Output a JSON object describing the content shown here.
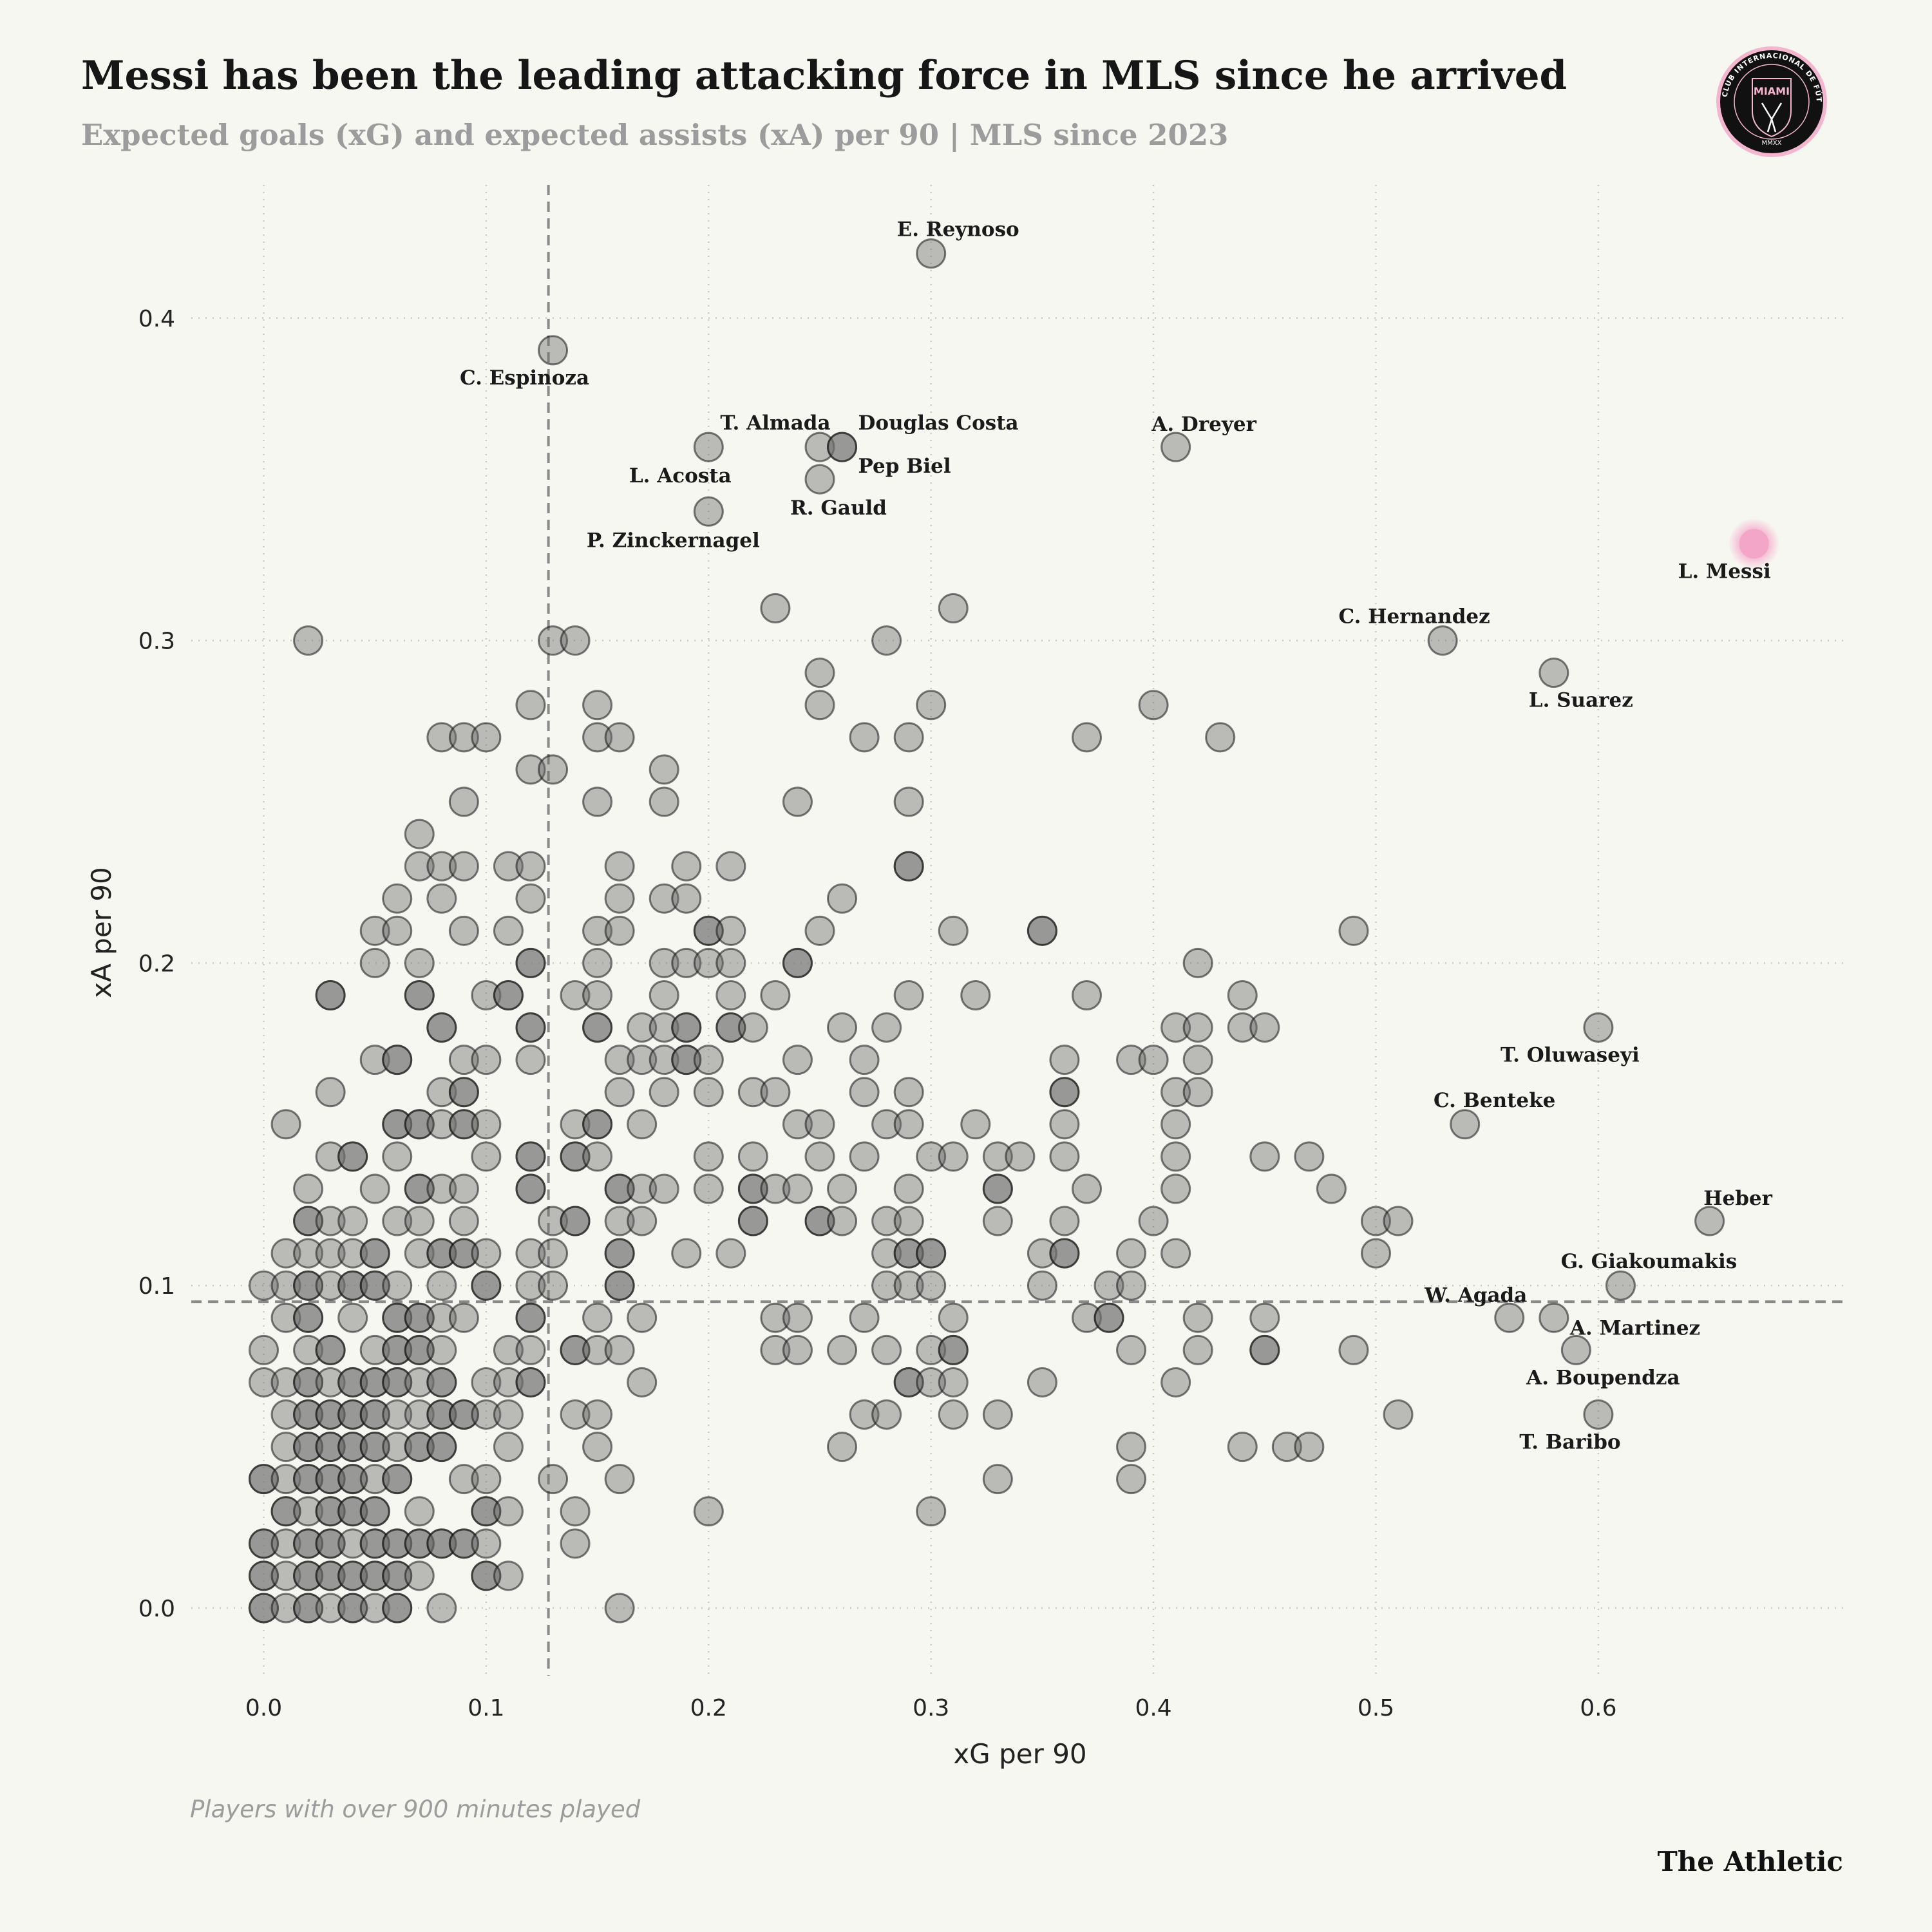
{
  "header": {
    "title": "Messi has been the leading attacking force in MLS since he arrived",
    "subtitle": "Expected goals (xG) and expected assists (xA) per 90 | MLS since 2023",
    "logo": {
      "icon": "inter-miami-crest",
      "text_top": "CLUB INTERNACIONAL DE FÚTBOL",
      "text_center": "MIAMI",
      "text_bottom": "MMXX",
      "colors": {
        "ring": "#f4b6cf",
        "body": "#111111"
      }
    }
  },
  "footer": {
    "note": "Players with over 900 minutes played",
    "brand": "The Athletic"
  },
  "chart_data": {
    "type": "scatter",
    "title": "Messi has been the leading attacking force in MLS since he arrived",
    "subtitle": "Expected goals (xG) and expected assists (xA) per 90 | MLS since 2023",
    "xlabel": "xG per 90",
    "ylabel": "xA per 90",
    "xlim": [
      -0.03,
      0.71
    ],
    "ylim": [
      -0.02,
      0.44
    ],
    "xticks": [
      "0.0",
      "0.1",
      "0.2",
      "0.3",
      "0.4",
      "0.5",
      "0.6"
    ],
    "yticks": [
      "0.0",
      "0.1",
      "0.2",
      "0.3",
      "0.4"
    ],
    "grid": true,
    "reference_lines": {
      "x": 0.128,
      "y": 0.095
    },
    "colors": {
      "point": "#8a8a8a",
      "highlight": "#f4a6c8",
      "background": "#f7f7f2"
    },
    "rows": [
      {
        "y": 0.42,
        "x": [
          0.3
        ]
      },
      {
        "y": 0.39,
        "x": [
          0.13
        ]
      },
      {
        "y": 0.36,
        "x": [
          0.2,
          0.25,
          0.26,
          0.26,
          0.41
        ]
      },
      {
        "y": 0.35,
        "x": [
          0.25
        ]
      },
      {
        "y": 0.34,
        "x": [
          0.2
        ]
      },
      {
        "y": 0.31,
        "x": [
          0.23,
          0.31
        ]
      },
      {
        "y": 0.3,
        "x": [
          0.02,
          0.13,
          0.14,
          0.28,
          0.53
        ]
      },
      {
        "y": 0.29,
        "x": [
          0.25,
          0.58
        ]
      },
      {
        "y": 0.28,
        "x": [
          0.12,
          0.15,
          0.25,
          0.3,
          0.4
        ]
      },
      {
        "y": 0.27,
        "x": [
          0.08,
          0.09,
          0.1,
          0.15,
          0.16,
          0.27,
          0.29,
          0.37,
          0.43
        ]
      },
      {
        "y": 0.26,
        "x": [
          0.12,
          0.13,
          0.18
        ]
      },
      {
        "y": 0.25,
        "x": [
          0.09,
          0.15,
          0.18,
          0.24,
          0.29
        ]
      },
      {
        "y": 0.24,
        "x": [
          0.07
        ]
      },
      {
        "y": 0.23,
        "x": [
          0.07,
          0.08,
          0.09,
          0.11,
          0.12,
          0.16,
          0.19,
          0.21,
          0.29,
          0.29
        ]
      },
      {
        "y": 0.22,
        "x": [
          0.06,
          0.08,
          0.12,
          0.16,
          0.18,
          0.19,
          0.26
        ]
      },
      {
        "y": 0.21,
        "x": [
          0.05,
          0.06,
          0.09,
          0.11,
          0.15,
          0.16,
          0.2,
          0.2,
          0.21,
          0.25,
          0.31,
          0.35,
          0.35,
          0.49
        ]
      },
      {
        "y": 0.2,
        "x": [
          0.05,
          0.07,
          0.12,
          0.12,
          0.15,
          0.18,
          0.19,
          0.2,
          0.21,
          0.24,
          0.24,
          0.42
        ]
      },
      {
        "y": 0.19,
        "x": [
          0.03,
          0.03,
          0.07,
          0.07,
          0.1,
          0.11,
          0.11,
          0.14,
          0.15,
          0.18,
          0.21,
          0.23,
          0.29,
          0.32,
          0.37,
          0.44
        ]
      },
      {
        "y": 0.18,
        "x": [
          0.08,
          0.08,
          0.12,
          0.12,
          0.15,
          0.15,
          0.17,
          0.18,
          0.19,
          0.19,
          0.21,
          0.21,
          0.22,
          0.26,
          0.28,
          0.41,
          0.42,
          0.44,
          0.45,
          0.6
        ]
      },
      {
        "y": 0.17,
        "x": [
          0.05,
          0.06,
          0.06,
          0.09,
          0.1,
          0.12,
          0.16,
          0.17,
          0.18,
          0.19,
          0.19,
          0.2,
          0.24,
          0.27,
          0.36,
          0.39,
          0.4,
          0.42
        ]
      },
      {
        "y": 0.16,
        "x": [
          0.03,
          0.08,
          0.09,
          0.09,
          0.16,
          0.18,
          0.2,
          0.22,
          0.23,
          0.27,
          0.29,
          0.36,
          0.36,
          0.41,
          0.42
        ]
      },
      {
        "y": 0.15,
        "x": [
          0.01,
          0.06,
          0.06,
          0.07,
          0.07,
          0.08,
          0.09,
          0.09,
          0.1,
          0.14,
          0.15,
          0.15,
          0.17,
          0.24,
          0.25,
          0.28,
          0.29,
          0.32,
          0.36,
          0.41,
          0.54
        ]
      },
      {
        "y": 0.14,
        "x": [
          0.03,
          0.04,
          0.04,
          0.06,
          0.1,
          0.12,
          0.12,
          0.14,
          0.14,
          0.15,
          0.2,
          0.22,
          0.25,
          0.27,
          0.3,
          0.31,
          0.33,
          0.34,
          0.36,
          0.41,
          0.45,
          0.47
        ]
      },
      {
        "y": 0.13,
        "x": [
          0.02,
          0.05,
          0.07,
          0.07,
          0.08,
          0.09,
          0.12,
          0.12,
          0.16,
          0.16,
          0.17,
          0.18,
          0.2,
          0.22,
          0.22,
          0.23,
          0.24,
          0.26,
          0.29,
          0.33,
          0.33,
          0.37,
          0.41,
          0.48
        ]
      },
      {
        "y": 0.12,
        "x": [
          0.02,
          0.02,
          0.03,
          0.04,
          0.06,
          0.07,
          0.09,
          0.13,
          0.14,
          0.14,
          0.16,
          0.17,
          0.22,
          0.22,
          0.25,
          0.25,
          0.26,
          0.28,
          0.29,
          0.33,
          0.36,
          0.4,
          0.5,
          0.51,
          0.65
        ]
      },
      {
        "y": 0.11,
        "x": [
          0.01,
          0.02,
          0.03,
          0.04,
          0.05,
          0.05,
          0.07,
          0.08,
          0.08,
          0.09,
          0.09,
          0.1,
          0.12,
          0.13,
          0.16,
          0.16,
          0.19,
          0.21,
          0.28,
          0.29,
          0.29,
          0.3,
          0.3,
          0.35,
          0.36,
          0.36,
          0.39,
          0.41,
          0.5
        ]
      },
      {
        "y": 0.1,
        "x": [
          0.0,
          0.01,
          0.02,
          0.02,
          0.03,
          0.04,
          0.04,
          0.05,
          0.05,
          0.06,
          0.08,
          0.1,
          0.1,
          0.12,
          0.13,
          0.16,
          0.16,
          0.28,
          0.29,
          0.3,
          0.35,
          0.38,
          0.39,
          0.61
        ]
      },
      {
        "y": 0.09,
        "x": [
          0.01,
          0.02,
          0.02,
          0.04,
          0.06,
          0.06,
          0.07,
          0.07,
          0.08,
          0.09,
          0.12,
          0.12,
          0.15,
          0.17,
          0.23,
          0.24,
          0.27,
          0.31,
          0.37,
          0.38,
          0.38,
          0.42,
          0.45,
          0.56,
          0.58
        ]
      },
      {
        "y": 0.08,
        "x": [
          0.0,
          0.02,
          0.03,
          0.03,
          0.05,
          0.06,
          0.06,
          0.07,
          0.07,
          0.08,
          0.11,
          0.12,
          0.14,
          0.14,
          0.15,
          0.16,
          0.23,
          0.24,
          0.26,
          0.28,
          0.3,
          0.31,
          0.31,
          0.39,
          0.42,
          0.45,
          0.45,
          0.49,
          0.59
        ]
      },
      {
        "y": 0.07,
        "x": [
          0.0,
          0.01,
          0.02,
          0.02,
          0.03,
          0.04,
          0.04,
          0.05,
          0.05,
          0.06,
          0.06,
          0.07,
          0.08,
          0.08,
          0.1,
          0.11,
          0.12,
          0.12,
          0.17,
          0.29,
          0.29,
          0.3,
          0.31,
          0.35,
          0.41
        ]
      },
      {
        "y": 0.06,
        "x": [
          0.01,
          0.02,
          0.02,
          0.03,
          0.03,
          0.04,
          0.04,
          0.05,
          0.05,
          0.06,
          0.07,
          0.08,
          0.08,
          0.09,
          0.09,
          0.1,
          0.11,
          0.14,
          0.15,
          0.27,
          0.28,
          0.31,
          0.33,
          0.51,
          0.6
        ]
      },
      {
        "y": 0.05,
        "x": [
          0.01,
          0.02,
          0.02,
          0.03,
          0.03,
          0.04,
          0.04,
          0.05,
          0.05,
          0.06,
          0.07,
          0.07,
          0.08,
          0.08,
          0.11,
          0.15,
          0.26,
          0.39,
          0.44,
          0.46,
          0.47
        ]
      },
      {
        "y": 0.04,
        "x": [
          0.0,
          0.0,
          0.01,
          0.02,
          0.02,
          0.03,
          0.03,
          0.04,
          0.04,
          0.05,
          0.06,
          0.06,
          0.09,
          0.1,
          0.13,
          0.16,
          0.33,
          0.39
        ]
      },
      {
        "y": 0.03,
        "x": [
          0.01,
          0.01,
          0.02,
          0.03,
          0.03,
          0.04,
          0.04,
          0.05,
          0.05,
          0.07,
          0.1,
          0.1,
          0.11,
          0.14,
          0.2,
          0.3
        ]
      },
      {
        "y": 0.02,
        "x": [
          0.0,
          0.0,
          0.01,
          0.02,
          0.02,
          0.03,
          0.03,
          0.04,
          0.05,
          0.05,
          0.06,
          0.06,
          0.07,
          0.07,
          0.08,
          0.08,
          0.09,
          0.09,
          0.1,
          0.14
        ]
      },
      {
        "y": 0.01,
        "x": [
          0.0,
          0.0,
          0.01,
          0.02,
          0.02,
          0.03,
          0.03,
          0.04,
          0.04,
          0.05,
          0.05,
          0.06,
          0.06,
          0.07,
          0.1,
          0.1,
          0.11
        ]
      },
      {
        "y": 0.0,
        "x": [
          0.0,
          0.0,
          0.01,
          0.02,
          0.02,
          0.03,
          0.04,
          0.04,
          0.05,
          0.06,
          0.06,
          0.08,
          0.16
        ]
      }
    ],
    "highlight": {
      "name": "L. Messi",
      "x": 0.67,
      "y": 0.33
    },
    "labeled_players": [
      {
        "name": "E. Reynoso",
        "x": 0.3,
        "y": 0.42
      },
      {
        "name": "C. Espinoza",
        "x": 0.13,
        "y": 0.39
      },
      {
        "name": "T. Almada",
        "x": 0.25,
        "y": 0.36
      },
      {
        "name": "Douglas Costa",
        "x": 0.26,
        "y": 0.36
      },
      {
        "name": "Pep Biel",
        "x": 0.26,
        "y": 0.36
      },
      {
        "name": "L. Acosta",
        "x": 0.2,
        "y": 0.36
      },
      {
        "name": "R. Gauld",
        "x": 0.25,
        "y": 0.35
      },
      {
        "name": "P. Zinckernagel",
        "x": 0.2,
        "y": 0.34
      },
      {
        "name": "A. Dreyer",
        "x": 0.41,
        "y": 0.36
      },
      {
        "name": "L. Messi",
        "x": 0.67,
        "y": 0.33
      },
      {
        "name": "C. Hernandez",
        "x": 0.53,
        "y": 0.3
      },
      {
        "name": "L. Suarez",
        "x": 0.58,
        "y": 0.29
      },
      {
        "name": "T. Oluwaseyi",
        "x": 0.6,
        "y": 0.18
      },
      {
        "name": "C. Benteke",
        "x": 0.54,
        "y": 0.15
      },
      {
        "name": "Heber",
        "x": 0.65,
        "y": 0.12
      },
      {
        "name": "G. Giakoumakis",
        "x": 0.61,
        "y": 0.1
      },
      {
        "name": "W. Agada",
        "x": 0.56,
        "y": 0.09
      },
      {
        "name": "A. Martinez",
        "x": 0.58,
        "y": 0.09
      },
      {
        "name": "A. Boupendza",
        "x": 0.59,
        "y": 0.08
      },
      {
        "name": "T. Baribo",
        "x": 0.6,
        "y": 0.06
      }
    ]
  }
}
